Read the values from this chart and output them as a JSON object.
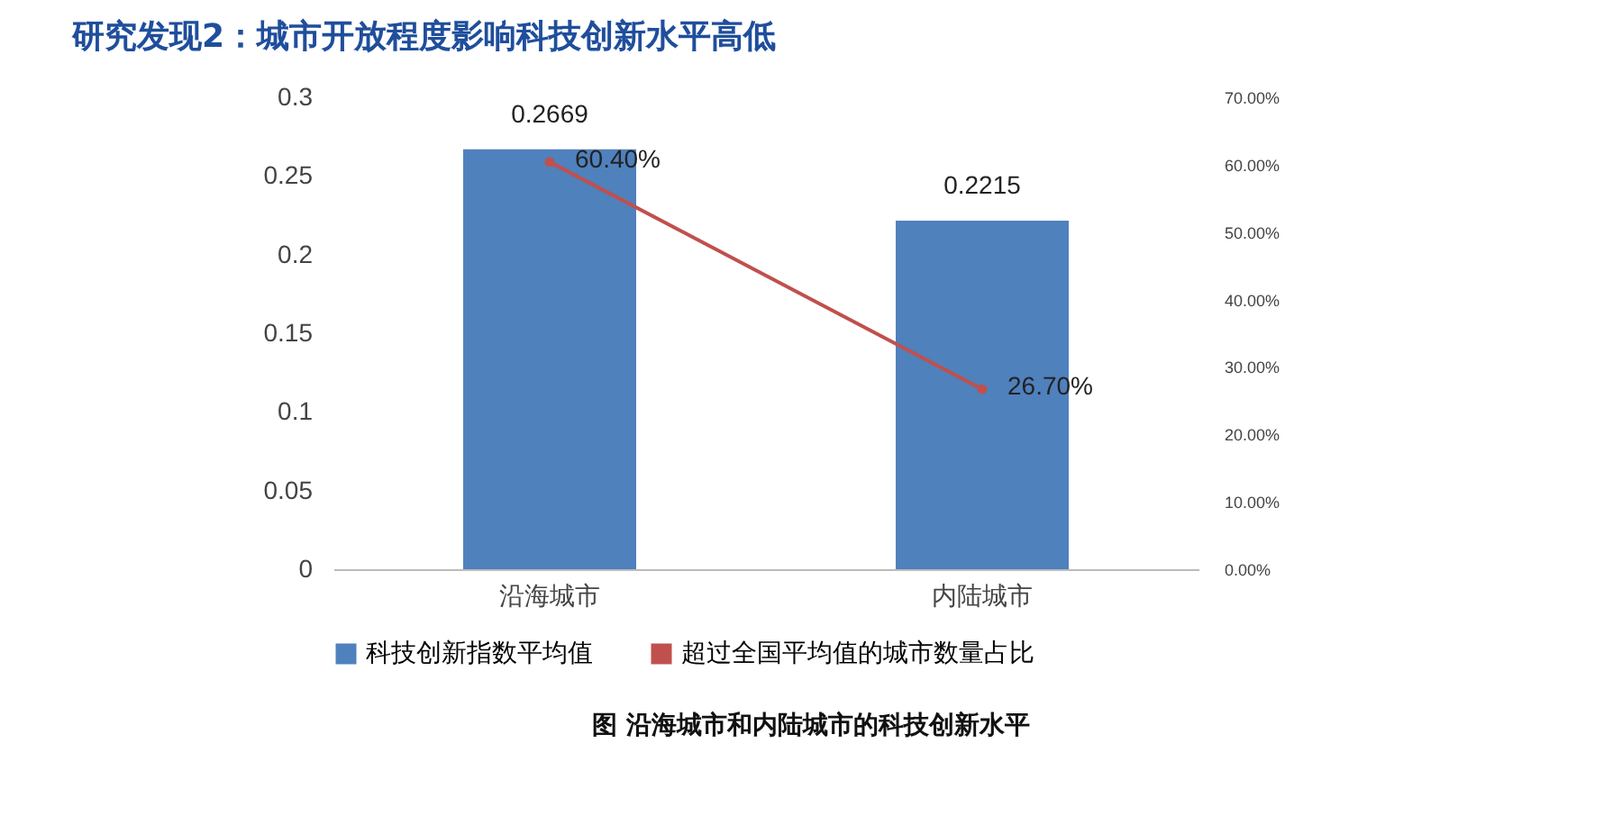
{
  "chart_data": {
    "type": "bar",
    "title": "研究发现2：城市开放程度影响科技创新水平高低",
    "annotations": [
      "图 沿海城市和内陆城市的科技创新水平"
    ],
    "categories": [
      "沿海城市",
      "内陆城市"
    ],
    "series": [
      {
        "name": "科技创新指数平均值",
        "color": "#4f81bd",
        "values": [
          0.2669,
          0.2215
        ],
        "value_labels": [
          "0.2669",
          "0.2215"
        ]
      },
      {
        "name": "超过全国平均值的城市数量占比",
        "type": "line",
        "axis": "y2",
        "color": "#c0504d",
        "values": [
          60.4,
          26.7
        ],
        "value_labels": [
          "60.40%",
          "26.70%"
        ]
      }
    ],
    "ylim": [
      0,
      0.3
    ],
    "yticks": [
      0,
      0.05,
      0.1,
      0.15,
      0.2,
      0.25,
      0.3
    ],
    "y2lim": [
      0,
      70
    ],
    "y2ticks": [
      {
        "value": 0,
        "label": "0.00%"
      },
      {
        "value": 10,
        "label": "10.00%"
      },
      {
        "value": 20,
        "label": "20.00%"
      },
      {
        "value": 30,
        "label": "30.00%"
      },
      {
        "value": 40,
        "label": "40.00%"
      },
      {
        "value": 50,
        "label": "50.00%"
      },
      {
        "value": 60,
        "label": "60.00%"
      },
      {
        "value": 70,
        "label": "70.00%"
      }
    ],
    "legend": "bottom",
    "marker": "circle",
    "grid": false
  }
}
